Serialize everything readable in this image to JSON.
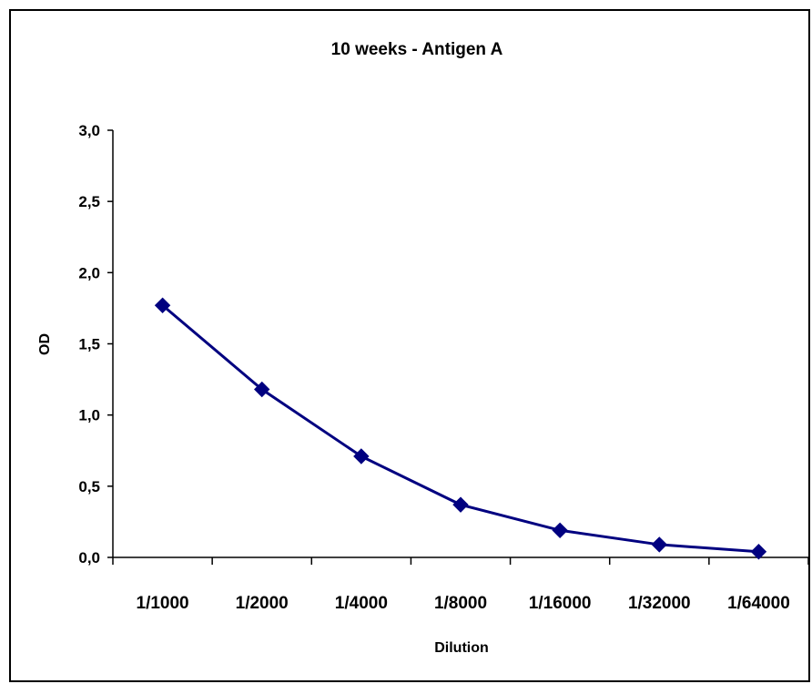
{
  "chart_data": {
    "type": "line",
    "title": "10 weeks - Antigen A",
    "xlabel": "Dilution",
    "ylabel": "OD",
    "categories": [
      "1/1000",
      "1/2000",
      "1/4000",
      "1/8000",
      "1/16000",
      "1/32000",
      "1/64000"
    ],
    "series": [
      {
        "values": [
          1.77,
          1.18,
          0.71,
          0.37,
          0.19,
          0.09,
          0.04
        ]
      }
    ],
    "ylim": [
      0,
      3.0
    ],
    "yticks": [
      "0,0",
      "0,5",
      "1,0",
      "1,5",
      "2,0",
      "2,5",
      "3,0"
    ],
    "grid": false,
    "legend": "none",
    "colors": {
      "line": "#000080",
      "marker": "#000080",
      "axis": "#000000"
    }
  }
}
